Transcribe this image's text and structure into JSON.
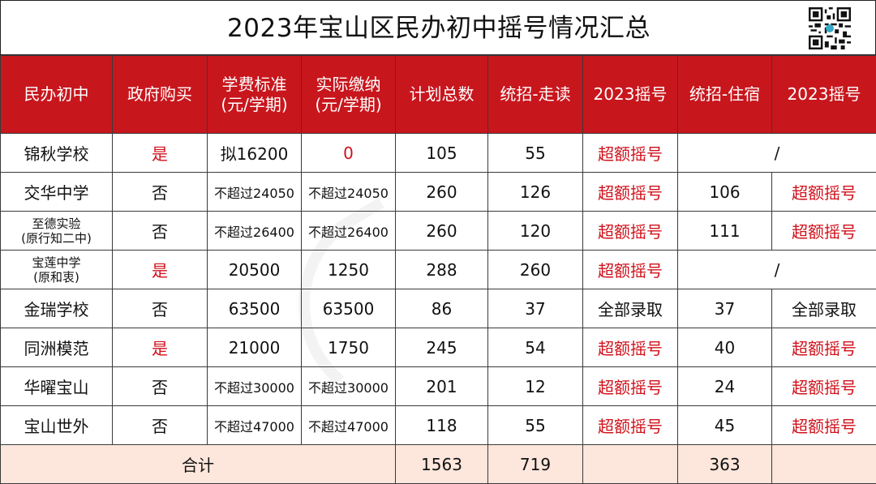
{
  "title": "2023年宝山区民办初中摇号情况汇总",
  "headers": [
    "民办初中",
    "政府购买",
    "学费标准\n(元/学期)",
    "实际缴纳\n(元/学期)",
    "计划总数",
    "统招-走读",
    "2023摇号",
    "统招-住宿",
    "2023摇号"
  ],
  "rows": [
    {
      "school": "锦秋学校",
      "school2": "",
      "gov": "是",
      "fee": "拟16200",
      "paid": "0",
      "plan": "105",
      "day": "55",
      "lottery1": "超额摇号",
      "boarding": "/",
      "lottery2": ""
    },
    {
      "school": "交华中学",
      "school2": "",
      "gov": "否",
      "fee": "不超过24050",
      "paid": "不超过24050",
      "plan": "260",
      "day": "126",
      "lottery1": "超额摇号",
      "boarding": "106",
      "lottery2": "超额摇号"
    },
    {
      "school": "至德实验",
      "school2": "(原行知二中)",
      "gov": "否",
      "fee": "不超过26400",
      "paid": "不超过26400",
      "plan": "260",
      "day": "120",
      "lottery1": "超额摇号",
      "boarding": "111",
      "lottery2": "超额摇号"
    },
    {
      "school": "宝莲中学",
      "school2": "(原和衷)",
      "gov": "是",
      "fee": "20500",
      "paid": "1250",
      "plan": "288",
      "day": "260",
      "lottery1": "超额摇号",
      "boarding": "/",
      "lottery2": ""
    },
    {
      "school": "金瑞学校",
      "school2": "",
      "gov": "否",
      "fee": "63500",
      "paid": "63500",
      "plan": "86",
      "day": "37",
      "lottery1": "全部录取",
      "boarding": "37",
      "lottery2": "全部录取"
    },
    {
      "school": "同洲模范",
      "school2": "",
      "gov": "是",
      "fee": "21000",
      "paid": "1750",
      "plan": "245",
      "day": "54",
      "lottery1": "超额摇号",
      "boarding": "40",
      "lottery2": "超额摇号"
    },
    {
      "school": "华曜宝山",
      "school2": "",
      "gov": "否",
      "fee": "不超过30000",
      "paid": "不超过30000",
      "plan": "201",
      "day": "12",
      "lottery1": "超额摇号",
      "boarding": "24",
      "lottery2": "超额摇号"
    },
    {
      "school": "宝山世外",
      "school2": "",
      "gov": "否",
      "fee": "不超过47000",
      "paid": "不超过47000",
      "plan": "118",
      "day": "55",
      "lottery1": "超额摇号",
      "boarding": "45",
      "lottery2": "超额摇号"
    }
  ],
  "total": {
    "label": "合计",
    "plan": "1563",
    "day": "719",
    "boarding": "363"
  },
  "colors": {
    "header_bg": "#c8161d",
    "footer_bg": "#fde6dc",
    "red_text": "#d0111b"
  }
}
